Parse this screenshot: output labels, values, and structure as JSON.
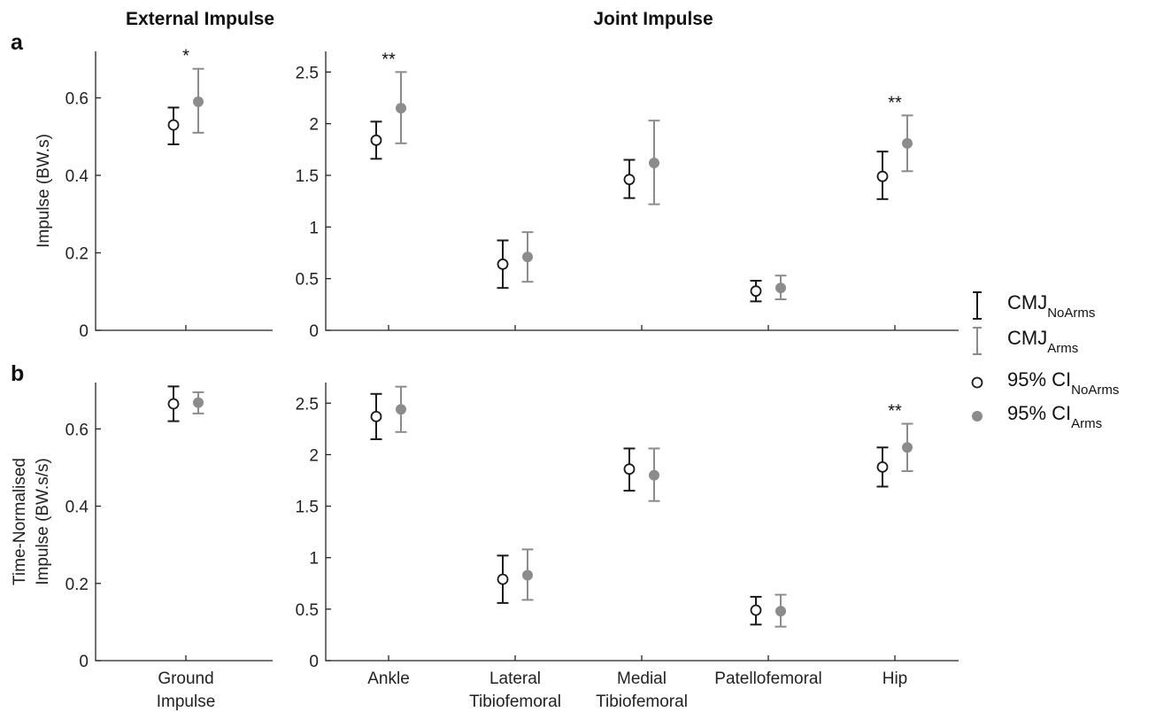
{
  "headings": {
    "external": "External Impulse",
    "joint": "Joint Impulse"
  },
  "panel_letters": {
    "a": "a",
    "b": "b"
  },
  "series_colors": {
    "noarms": "#1a1a1a",
    "arms": "#8c8c8c"
  },
  "legend": {
    "items": [
      {
        "kind": "errorbar",
        "color": "#1a1a1a",
        "main": "CMJ",
        "sub": "NoArms"
      },
      {
        "kind": "errorbar",
        "color": "#8c8c8c",
        "main": "CMJ",
        "sub": "Arms"
      },
      {
        "kind": "open-circle",
        "color": "#1a1a1a",
        "main": "95% CI",
        "sub": "NoArms"
      },
      {
        "kind": "filled-circle",
        "color": "#8c8c8c",
        "main": "95% CI",
        "sub": "Arms"
      }
    ]
  },
  "chart_data": [
    {
      "id": "a-external",
      "type": "scatter-errorbar",
      "ylabel": "Impulse (BW.s)",
      "ylim": [
        0,
        0.72
      ],
      "yticks": [
        0,
        0.2,
        0.4,
        0.6
      ],
      "categories": [
        "Ground Impulse"
      ],
      "show_categories": false,
      "series": [
        {
          "name": "NoArms",
          "mean": [
            0.53
          ],
          "lower": [
            0.48
          ],
          "upper": [
            0.575
          ]
        },
        {
          "name": "Arms",
          "mean": [
            0.59
          ],
          "lower": [
            0.51
          ],
          "upper": [
            0.675
          ]
        }
      ],
      "significance": [
        "*"
      ]
    },
    {
      "id": "a-joint",
      "type": "scatter-errorbar",
      "ylabel": "",
      "ylim": [
        0,
        2.7
      ],
      "yticks": [
        0,
        0.5,
        1,
        1.5,
        2,
        2.5
      ],
      "categories": [
        "Ankle",
        "Lateral Tibiofemoral",
        "Medial Tibiofemoral",
        "Patellofemoral",
        "Hip"
      ],
      "show_categories": false,
      "series": [
        {
          "name": "NoArms",
          "mean": [
            1.84,
            0.64,
            1.46,
            0.38,
            1.49
          ],
          "lower": [
            1.66,
            0.41,
            1.28,
            0.28,
            1.27
          ],
          "upper": [
            2.02,
            0.87,
            1.65,
            0.48,
            1.73
          ]
        },
        {
          "name": "Arms",
          "mean": [
            2.15,
            0.71,
            1.62,
            0.41,
            1.81
          ],
          "lower": [
            1.81,
            0.47,
            1.22,
            0.3,
            1.54
          ],
          "upper": [
            2.5,
            0.95,
            2.03,
            0.53,
            2.08
          ]
        }
      ],
      "significance": [
        "**",
        "",
        "",
        "",
        "**"
      ]
    },
    {
      "id": "b-external",
      "type": "scatter-errorbar",
      "ylabel": "Time-Normalised\nImpulse (BW.s/s)",
      "ylim": [
        0,
        0.72
      ],
      "yticks": [
        0,
        0.2,
        0.4,
        0.6
      ],
      "categories": [
        "Ground Impulse"
      ],
      "show_categories": true,
      "series": [
        {
          "name": "NoArms",
          "mean": [
            0.665
          ],
          "lower": [
            0.62
          ],
          "upper": [
            0.71
          ]
        },
        {
          "name": "Arms",
          "mean": [
            0.668
          ],
          "lower": [
            0.64
          ],
          "upper": [
            0.695
          ]
        }
      ],
      "significance": [
        ""
      ]
    },
    {
      "id": "b-joint",
      "type": "scatter-errorbar",
      "ylabel": "",
      "ylim": [
        0,
        2.7
      ],
      "yticks": [
        0,
        0.5,
        1,
        1.5,
        2,
        2.5
      ],
      "categories": [
        "Ankle",
        "Lateral Tibiofemoral",
        "Medial Tibiofemoral",
        "Patellofemoral",
        "Hip"
      ],
      "show_categories": true,
      "series": [
        {
          "name": "NoArms",
          "mean": [
            2.37,
            0.79,
            1.86,
            0.49,
            1.88
          ],
          "lower": [
            2.15,
            0.56,
            1.65,
            0.35,
            1.69
          ],
          "upper": [
            2.59,
            1.02,
            2.06,
            0.62,
            2.07
          ]
        },
        {
          "name": "Arms",
          "mean": [
            2.44,
            0.83,
            1.8,
            0.48,
            2.07
          ],
          "lower": [
            2.22,
            0.59,
            1.55,
            0.33,
            1.84
          ],
          "upper": [
            2.66,
            1.08,
            2.06,
            0.64,
            2.3
          ]
        }
      ],
      "significance": [
        "",
        "",
        "",
        "",
        "**"
      ]
    }
  ]
}
